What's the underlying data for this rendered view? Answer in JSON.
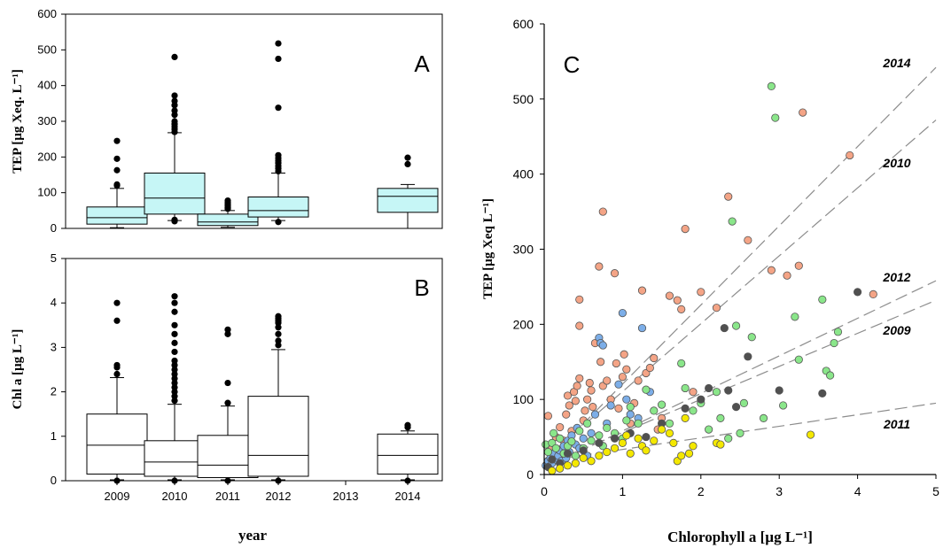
{
  "chart_data": [
    {
      "panel": "A",
      "type": "box",
      "ylabel": "TEP [µg Xeq. L⁻¹]",
      "xlabel": "",
      "ylim": [
        0,
        600
      ],
      "yticks": [
        0,
        100,
        200,
        300,
        400,
        500,
        600
      ],
      "categories": [
        "2009",
        "2010",
        "2011",
        "2012",
        "2013",
        "2014"
      ],
      "box_fill": "#c6f6f6",
      "boxes": [
        {
          "category": "2009",
          "whisker_low": 2,
          "q1": 12,
          "median": 30,
          "q3": 60,
          "whisker_high": 112,
          "outliers": [
            120,
            123,
            163,
            195,
            245
          ]
        },
        {
          "category": "2010",
          "whisker_low": 22,
          "q1": 40,
          "median": 85,
          "q3": 155,
          "whisker_high": 268,
          "outliers": [
            20,
            24,
            270,
            278,
            285,
            292,
            300,
            318,
            330,
            345,
            357,
            372,
            480
          ]
        },
        {
          "category": "2011",
          "whisker_low": 3,
          "q1": 8,
          "median": 18,
          "q3": 40,
          "whisker_high": 50,
          "outliers": [
            55,
            58,
            63,
            68,
            73,
            78
          ]
        },
        {
          "category": "2012",
          "whisker_low": 22,
          "q1": 32,
          "median": 50,
          "q3": 88,
          "whisker_high": 155,
          "outliers": [
            18,
            160,
            168,
            175,
            183,
            190,
            197,
            205,
            338,
            475,
            518
          ]
        },
        {
          "category": "2014",
          "whisker_low": 0,
          "q1": 45,
          "median": 90,
          "q3": 112,
          "whisker_high": 123,
          "outliers": [
            180,
            198
          ]
        }
      ]
    },
    {
      "panel": "B",
      "type": "box",
      "ylabel": "Chl a [µg L⁻¹]",
      "xlabel": "year",
      "ylim": [
        0,
        5
      ],
      "yticks": [
        0,
        1,
        2,
        3,
        4,
        5
      ],
      "categories": [
        "2009",
        "2010",
        "2011",
        "2012",
        "2013",
        "2014"
      ],
      "box_fill": "#ffffff",
      "boxes": [
        {
          "category": "2009",
          "whisker_low": 0.02,
          "q1": 0.15,
          "median": 0.8,
          "q3": 1.5,
          "whisker_high": 2.32,
          "outliers": [
            0.0,
            2.4,
            2.55,
            2.6,
            3.6,
            4.0
          ]
        },
        {
          "category": "2010",
          "whisker_low": 0.02,
          "q1": 0.1,
          "median": 0.42,
          "q3": 0.9,
          "whisker_high": 1.72,
          "outliers": [
            0.0,
            1.8,
            1.9,
            2.0,
            2.1,
            2.2,
            2.3,
            2.4,
            2.5,
            2.6,
            2.7,
            2.9,
            3.1,
            3.3,
            3.5,
            3.8,
            4.0,
            4.15
          ]
        },
        {
          "category": "2011",
          "whisker_low": 0.02,
          "q1": 0.07,
          "median": 0.35,
          "q3": 1.02,
          "whisker_high": 1.68,
          "outliers": [
            0.0,
            1.75,
            2.2,
            3.3,
            3.4
          ]
        },
        {
          "category": "2012",
          "whisker_low": 0.02,
          "q1": 0.1,
          "median": 0.57,
          "q3": 1.9,
          "whisker_high": 2.95,
          "outliers": [
            0.0,
            3.05,
            3.15,
            3.3,
            3.45,
            3.55,
            3.6,
            3.65,
            3.7
          ]
        },
        {
          "category": "2014",
          "whisker_low": 0.02,
          "q1": 0.15,
          "median": 0.57,
          "q3": 1.05,
          "whisker_high": 1.12,
          "outliers": [
            0.0,
            1.2,
            1.25
          ]
        }
      ]
    },
    {
      "panel": "C",
      "type": "scatter",
      "xlabel": "Chlorophyll a [µg L⁻¹]",
      "ylabel": "TEP [µg Xeq L⁻¹]",
      "xlim": [
        0,
        5
      ],
      "ylim": [
        0,
        600
      ],
      "xticks": [
        0,
        1,
        2,
        3,
        4,
        5
      ],
      "yticks": [
        0,
        100,
        200,
        300,
        400,
        500,
        600
      ],
      "series": [
        {
          "color": "#f4a486",
          "points": [
            [
              0.05,
              78
            ],
            [
              0.1,
              35
            ],
            [
              0.15,
              50
            ],
            [
              0.2,
              63
            ],
            [
              0.25,
              45
            ],
            [
              0.28,
              80
            ],
            [
              0.3,
              105
            ],
            [
              0.32,
              92
            ],
            [
              0.35,
              58
            ],
            [
              0.38,
              110
            ],
            [
              0.4,
              98
            ],
            [
              0.42,
              118
            ],
            [
              0.45,
              128
            ],
            [
              0.45,
              233
            ],
            [
              0.45,
              198
            ],
            [
              0.5,
              72
            ],
            [
              0.52,
              85
            ],
            [
              0.55,
              100
            ],
            [
              0.58,
              122
            ],
            [
              0.6,
              112
            ],
            [
              0.62,
              90
            ],
            [
              0.65,
              175
            ],
            [
              0.7,
              277
            ],
            [
              0.72,
              150
            ],
            [
              0.75,
              350
            ],
            [
              0.75,
              118
            ],
            [
              0.8,
              125
            ],
            [
              0.85,
              100
            ],
            [
              0.9,
              268
            ],
            [
              0.92,
              148
            ],
            [
              0.95,
              88
            ],
            [
              1.0,
              130
            ],
            [
              1.02,
              160
            ],
            [
              1.05,
              140
            ],
            [
              1.1,
              68
            ],
            [
              1.15,
              95
            ],
            [
              1.2,
              125
            ],
            [
              1.25,
              245
            ],
            [
              1.3,
              135
            ],
            [
              1.35,
              142
            ],
            [
              1.4,
              155
            ],
            [
              1.45,
              60
            ],
            [
              1.5,
              75
            ],
            [
              1.6,
              238
            ],
            [
              1.7,
              232
            ],
            [
              1.75,
              220
            ],
            [
              1.8,
              327
            ],
            [
              1.9,
              110
            ],
            [
              2.0,
              243
            ],
            [
              2.2,
              222
            ],
            [
              2.35,
              370
            ],
            [
              2.6,
              312
            ],
            [
              2.9,
              272
            ],
            [
              3.1,
              265
            ],
            [
              3.25,
              278
            ],
            [
              3.3,
              482
            ],
            [
              3.9,
              425
            ],
            [
              4.2,
              240
            ]
          ]
        },
        {
          "color": "#7caee8",
          "points": [
            [
              0.02,
              12
            ],
            [
              0.05,
              18
            ],
            [
              0.08,
              22
            ],
            [
              0.1,
              15
            ],
            [
              0.12,
              28
            ],
            [
              0.15,
              20
            ],
            [
              0.18,
              25
            ],
            [
              0.2,
              32
            ],
            [
              0.22,
              18
            ],
            [
              0.25,
              38
            ],
            [
              0.28,
              22
            ],
            [
              0.3,
              45
            ],
            [
              0.32,
              30
            ],
            [
              0.35,
              52
            ],
            [
              0.4,
              40
            ],
            [
              0.42,
              62
            ],
            [
              0.45,
              35
            ],
            [
              0.5,
              48
            ],
            [
              0.55,
              25
            ],
            [
              0.6,
              55
            ],
            [
              0.65,
              80
            ],
            [
              0.7,
              182
            ],
            [
              0.72,
              175
            ],
            [
              0.75,
              172
            ],
            [
              0.8,
              68
            ],
            [
              0.85,
              92
            ],
            [
              0.95,
              120
            ],
            [
              1.0,
              215
            ],
            [
              1.05,
              100
            ],
            [
              1.1,
              80
            ],
            [
              1.2,
              75
            ],
            [
              1.25,
              195
            ],
            [
              1.35,
              110
            ]
          ]
        },
        {
          "color": "#8ae68a",
          "points": [
            [
              0.02,
              40
            ],
            [
              0.05,
              30
            ],
            [
              0.1,
              42
            ],
            [
              0.12,
              55
            ],
            [
              0.15,
              35
            ],
            [
              0.2,
              48
            ],
            [
              0.25,
              28
            ],
            [
              0.3,
              38
            ],
            [
              0.35,
              44
            ],
            [
              0.4,
              25
            ],
            [
              0.45,
              58
            ],
            [
              0.5,
              35
            ],
            [
              0.55,
              68
            ],
            [
              0.6,
              45
            ],
            [
              0.7,
              52
            ],
            [
              0.75,
              38
            ],
            [
              0.8,
              62
            ],
            [
              0.9,
              55
            ],
            [
              1.0,
              48
            ],
            [
              1.05,
              72
            ],
            [
              1.1,
              90
            ],
            [
              1.2,
              68
            ],
            [
              1.3,
              113
            ],
            [
              1.4,
              85
            ],
            [
              1.5,
              93
            ],
            [
              1.6,
              68
            ],
            [
              1.75,
              148
            ],
            [
              1.8,
              115
            ],
            [
              1.9,
              85
            ],
            [
              2.0,
              95
            ],
            [
              2.1,
              60
            ],
            [
              2.2,
              110
            ],
            [
              2.25,
              75
            ],
            [
              2.35,
              48
            ],
            [
              2.4,
              337
            ],
            [
              2.45,
              198
            ],
            [
              2.5,
              55
            ],
            [
              2.55,
              95
            ],
            [
              2.65,
              183
            ],
            [
              2.8,
              75
            ],
            [
              2.9,
              517
            ],
            [
              2.95,
              475
            ],
            [
              3.05,
              92
            ],
            [
              3.2,
              210
            ],
            [
              3.25,
              153
            ],
            [
              3.55,
              233
            ],
            [
              3.6,
              138
            ],
            [
              3.65,
              132
            ],
            [
              3.7,
              175
            ],
            [
              3.75,
              190
            ]
          ]
        },
        {
          "color": "#505050",
          "points": [
            [
              0.05,
              10
            ],
            [
              0.1,
              20
            ],
            [
              0.2,
              15
            ],
            [
              0.3,
              28
            ],
            [
              0.5,
              32
            ],
            [
              0.7,
              42
            ],
            [
              0.9,
              48
            ],
            [
              1.1,
              55
            ],
            [
              1.3,
              50
            ],
            [
              1.5,
              68
            ],
            [
              1.8,
              88
            ],
            [
              2.0,
              100
            ],
            [
              2.1,
              115
            ],
            [
              2.3,
              195
            ],
            [
              2.35,
              112
            ],
            [
              2.45,
              90
            ],
            [
              2.6,
              157
            ],
            [
              3.0,
              112
            ],
            [
              3.55,
              108
            ],
            [
              4.0,
              243
            ]
          ]
        },
        {
          "color": "#f4e800",
          "points": [
            [
              0.1,
              5
            ],
            [
              0.2,
              8
            ],
            [
              0.3,
              12
            ],
            [
              0.4,
              15
            ],
            [
              0.5,
              22
            ],
            [
              0.6,
              18
            ],
            [
              0.7,
              25
            ],
            [
              0.8,
              30
            ],
            [
              0.9,
              35
            ],
            [
              1.0,
              42
            ],
            [
              1.05,
              52
            ],
            [
              1.1,
              28
            ],
            [
              1.2,
              48
            ],
            [
              1.25,
              38
            ],
            [
              1.3,
              32
            ],
            [
              1.4,
              45
            ],
            [
              1.5,
              60
            ],
            [
              1.6,
              55
            ],
            [
              1.65,
              42
            ],
            [
              1.7,
              18
            ],
            [
              1.75,
              25
            ],
            [
              1.8,
              75
            ],
            [
              1.85,
              28
            ],
            [
              1.9,
              38
            ],
            [
              2.2,
              42
            ],
            [
              2.25,
              40
            ],
            [
              3.4,
              53
            ]
          ]
        }
      ],
      "fits": [
        {
          "label": "2014",
          "y_at_x0": 15,
          "y_at_x5": 542
        },
        {
          "label": "2010",
          "y_at_x0": 20,
          "y_at_x5": 472
        },
        {
          "label": "2012",
          "y_at_x0": 8,
          "y_at_x5": 258
        },
        {
          "label": "2009",
          "y_at_x0": 12,
          "y_at_x5": 232
        },
        {
          "label": "2011",
          "y_at_x0": 18,
          "y_at_x5": 95
        }
      ]
    }
  ],
  "colors": {
    "axis": "#000000",
    "fit_line": "#8c8c8c",
    "marker_edge": "#555555"
  }
}
